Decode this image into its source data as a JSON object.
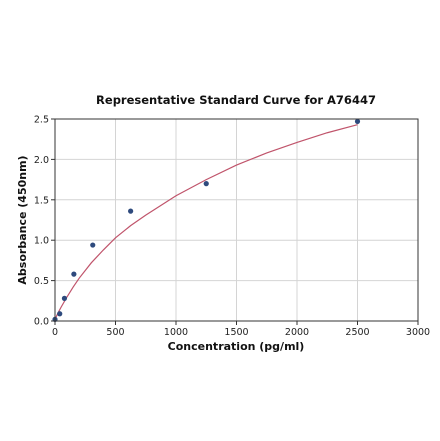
{
  "chart_data": {
    "type": "scatter",
    "title": "Representative Standard Curve for A76447",
    "xlabel": "Concentration (pg/ml)",
    "ylabel": "Absorbance (450nm)",
    "xlim": [
      0,
      3000
    ],
    "ylim": [
      0,
      2.5
    ],
    "x_ticks": [
      "0",
      "500",
      "1000",
      "1500",
      "2000",
      "2500",
      "3000"
    ],
    "y_ticks": [
      "0.0",
      "0.5",
      "1.0",
      "1.5",
      "2.0",
      "2.5"
    ],
    "grid": true,
    "series": [
      {
        "values_x": [
          0,
          39,
          78,
          156,
          312,
          625,
          1250,
          2500
        ],
        "values_y": [
          0.02,
          0.09,
          0.28,
          0.58,
          0.94,
          1.36,
          1.7,
          2.47
        ],
        "point_color": "#2e4a7d"
      }
    ],
    "fit_curve": {
      "color": "#c0546b",
      "x": [
        0,
        25,
        50,
        100,
        150,
        200,
        300,
        400,
        500,
        625,
        750,
        1000,
        1250,
        1500,
        1750,
        2000,
        2250,
        2500
      ],
      "y": [
        0.02,
        0.1,
        0.17,
        0.3,
        0.42,
        0.53,
        0.72,
        0.88,
        1.03,
        1.18,
        1.31,
        1.55,
        1.75,
        1.93,
        2.08,
        2.21,
        2.33,
        2.43
      ]
    }
  }
}
